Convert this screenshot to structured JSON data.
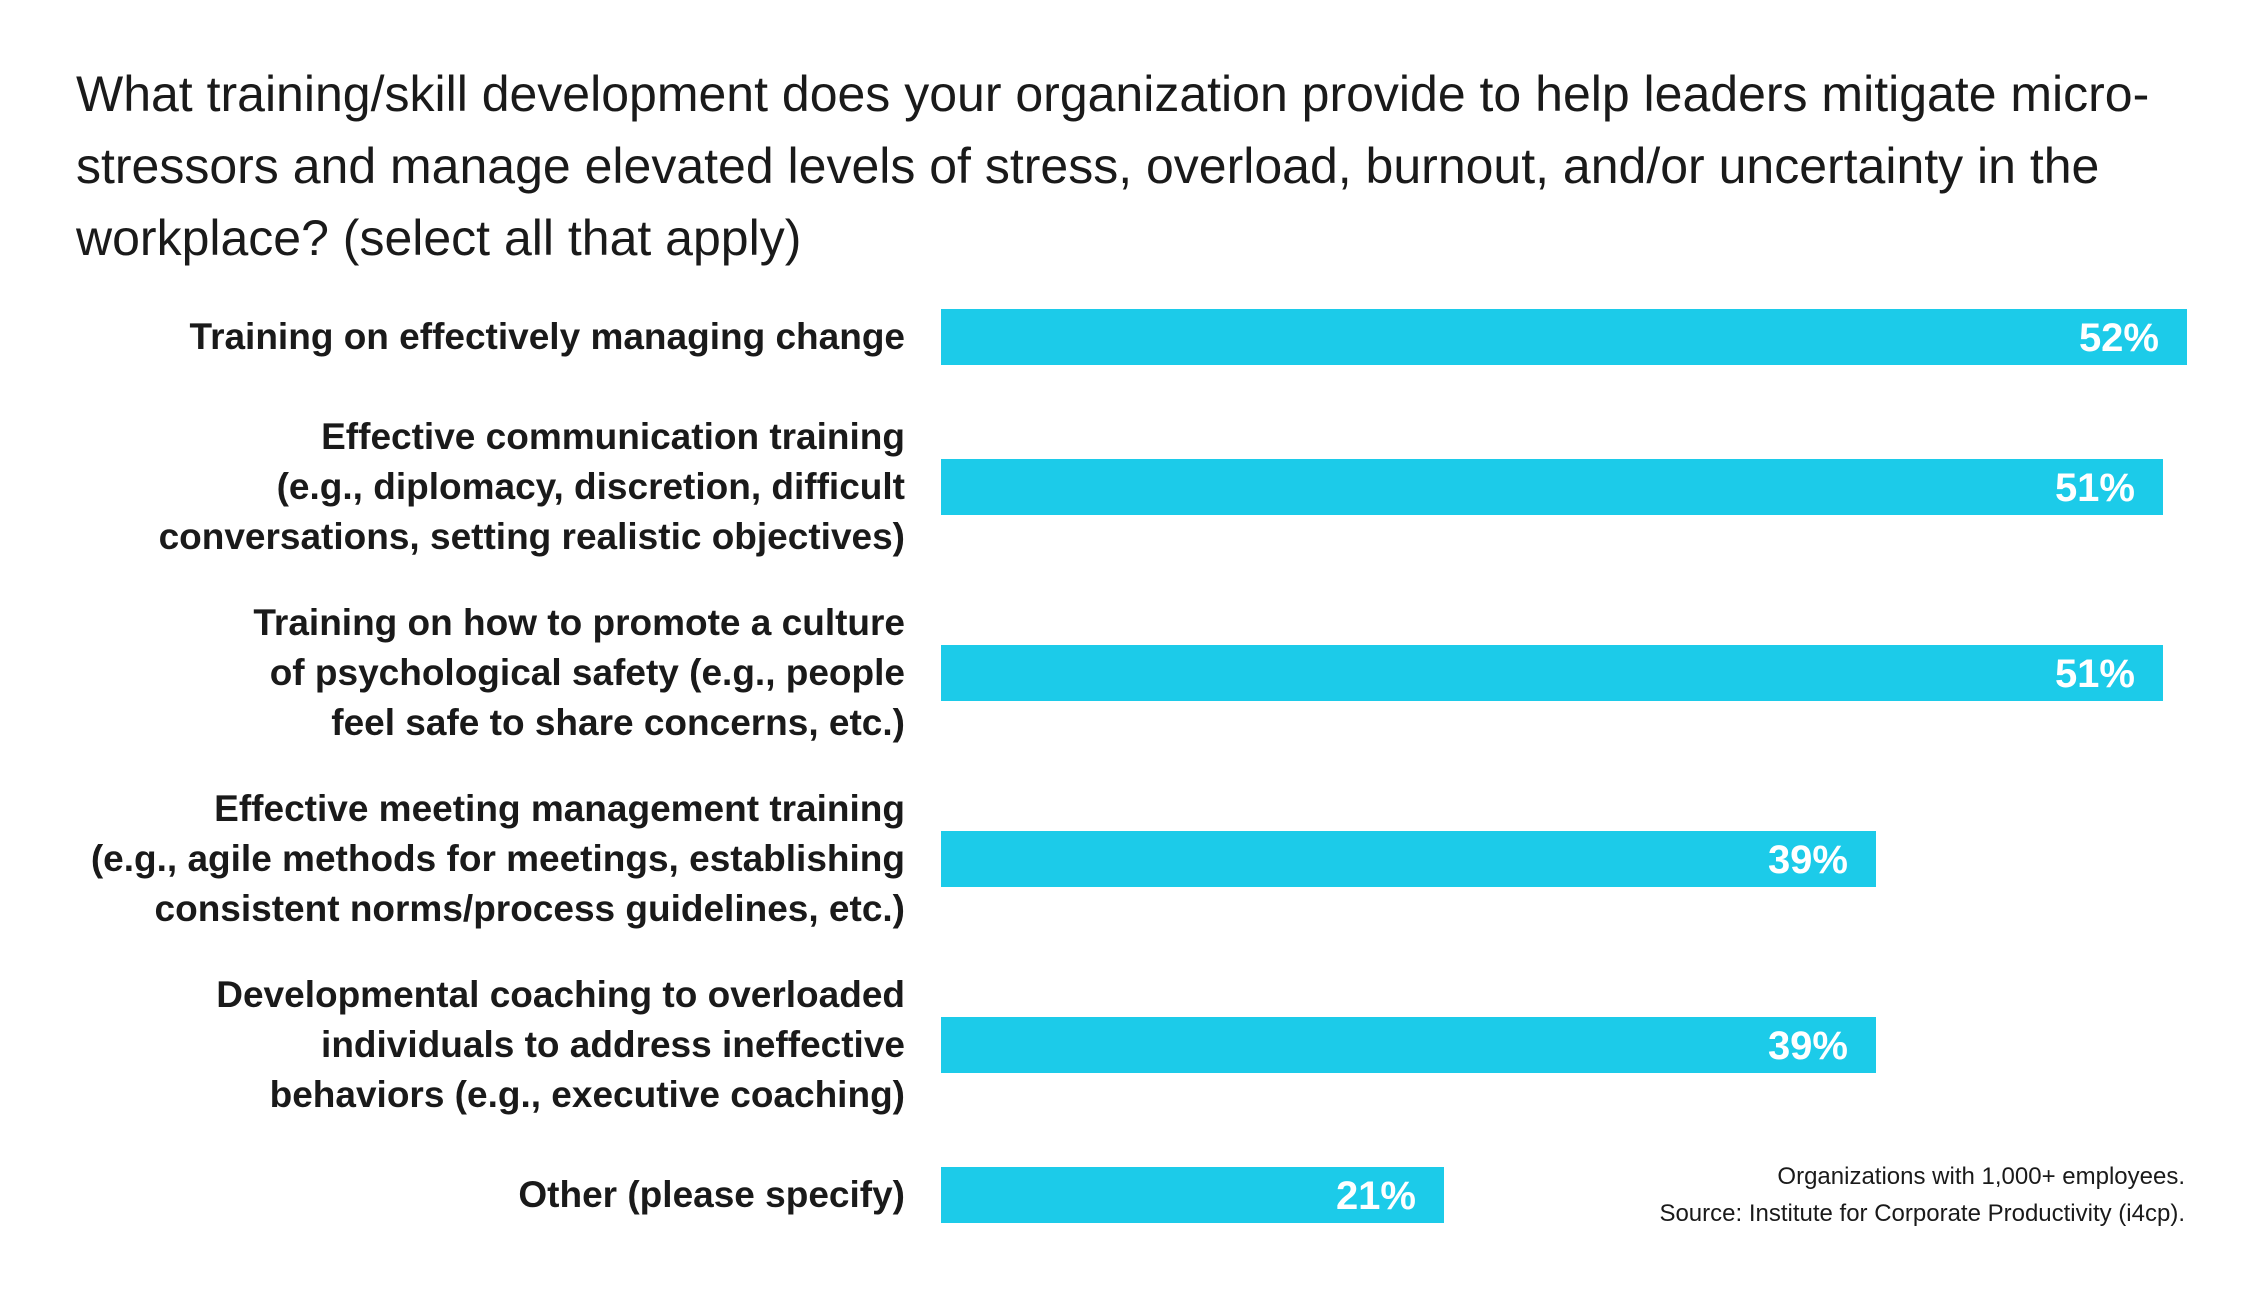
{
  "chart_data": {
    "type": "bar",
    "orientation": "horizontal",
    "title": "What training/skill development does your organization provide to help leaders mitigate micro-stressors and manage elevated levels of stress, overload, burnout, and/or uncertainty in the workplace? (select all that apply)",
    "categories": [
      "Training on effectively managing change",
      "Effective communication training (e.g., diplomacy, discretion, difficult conversations, setting realistic objectives)",
      "Training on how to promote a culture of psychological safety (e.g., people feel safe to share concerns, etc.)",
      "Effective meeting management training (e.g., agile methods for meetings, establishing consistent norms/process guidelines, etc.)",
      "Developmental coaching to overloaded individuals to address ineffective behaviors (e.g., executive coaching)",
      "Other (please specify)"
    ],
    "label_lines": [
      [
        "Training on effectively managing change"
      ],
      [
        "Effective communication training",
        "(e.g., diplomacy, discretion, difficult",
        "conversations, setting realistic objectives)"
      ],
      [
        "Training on how to promote a culture",
        "of psychological safety (e.g., people",
        "feel safe to share concerns, etc.)"
      ],
      [
        "Effective meeting management training",
        "(e.g., agile methods for meetings, establishing",
        "consistent norms/process guidelines, etc.)"
      ],
      [
        "Developmental coaching to overloaded",
        "individuals to address ineffective",
        "behaviors (e.g., executive coaching)"
      ],
      [
        "Other (please specify)"
      ]
    ],
    "values": [
      52,
      51,
      51,
      39,
      39,
      21
    ],
    "value_labels": [
      "52%",
      "51%",
      "51%",
      "39%",
      "39%",
      "21%"
    ],
    "unit": "%",
    "xlim": [
      0,
      52
    ],
    "grid": false,
    "legend": "none",
    "bar_color": "#1ccbe9",
    "value_label_color": "#ffffff"
  },
  "footnote": {
    "line1": "Organizations with 1,000+ employees.",
    "line2": "Source: Institute for Corporate Productivity (i4cp)."
  }
}
